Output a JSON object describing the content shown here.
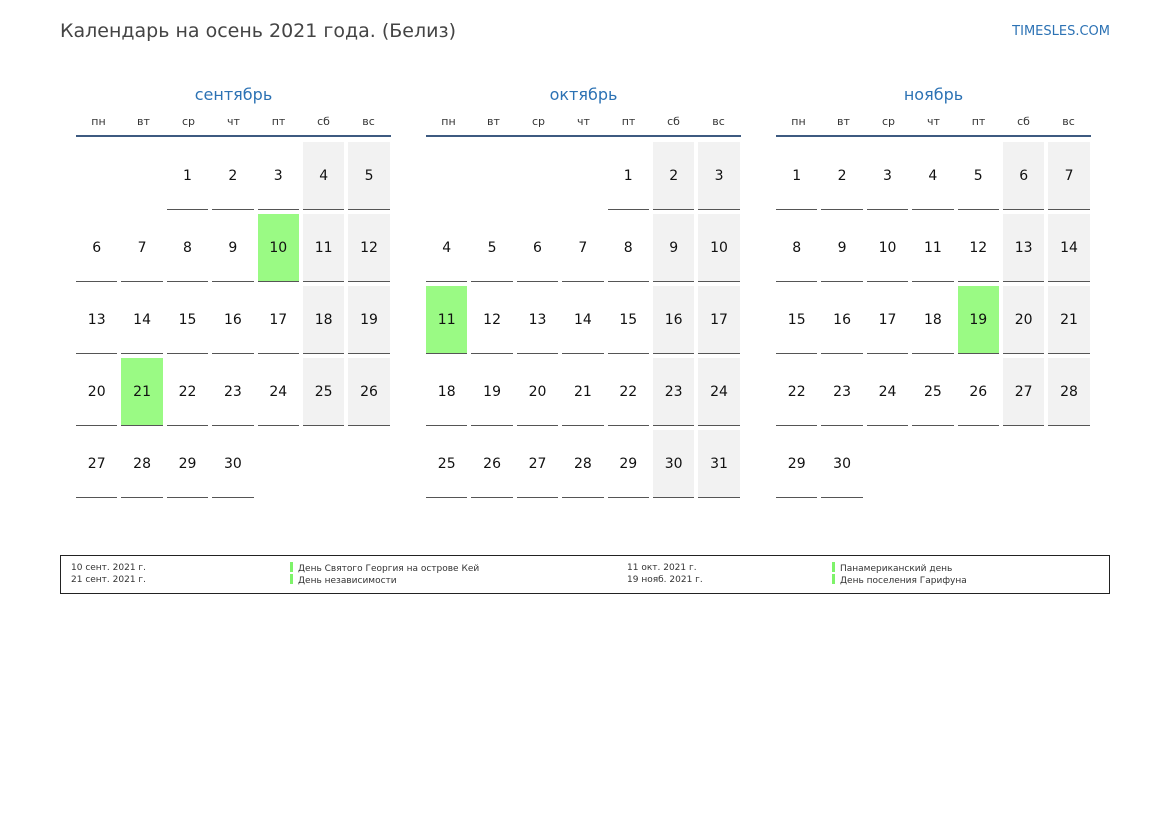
{
  "header": {
    "title": "Календарь на осень 2021 года. (Белиз)",
    "brand": "TIMESLES.COM"
  },
  "weekdays": [
    "пн",
    "вт",
    "ср",
    "чт",
    "пт",
    "сб",
    "вс"
  ],
  "colors": {
    "accent": "#2c72b4",
    "holiday": "#9afa84",
    "weekend": "#f2f2f2",
    "rule": "#3d5a80"
  },
  "months": [
    {
      "name": "сентябрь",
      "start_offset": 2,
      "days": 30,
      "holidays": [
        10,
        21
      ]
    },
    {
      "name": "октябрь",
      "start_offset": 4,
      "days": 31,
      "holidays": [
        11
      ]
    },
    {
      "name": "ноябрь",
      "start_offset": 0,
      "days": 30,
      "holidays": [
        19
      ]
    }
  ],
  "legend": [
    {
      "date": "10 сент. 2021 г.",
      "name": "День Святого Георгия на острове Кей"
    },
    {
      "date": "21 сент. 2021 г.",
      "name": "День независимости"
    },
    {
      "date": "11 окт. 2021 г.",
      "name": "Панамериканский день"
    },
    {
      "date": "19 нояб. 2021 г.",
      "name": "День поселения Гарифуна"
    }
  ]
}
